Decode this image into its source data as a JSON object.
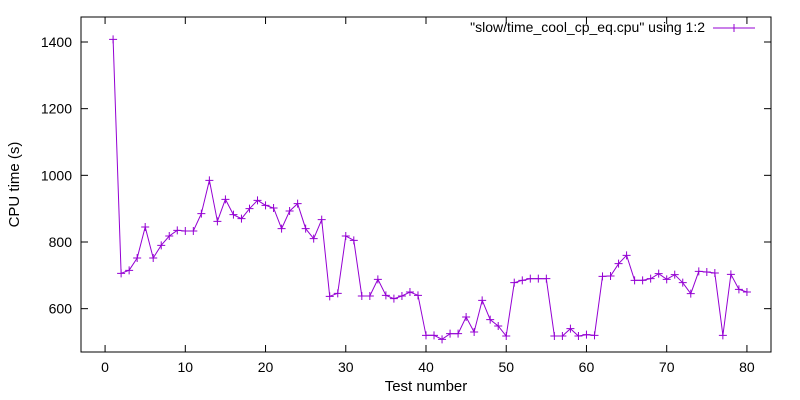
{
  "chart_data": {
    "type": "line",
    "xlabel": "Test number",
    "ylabel": "CPU time (s)",
    "xlim": [
      -3,
      83
    ],
    "ylim": [
      470,
      1475
    ],
    "xticks": [
      0,
      10,
      20,
      30,
      40,
      50,
      60,
      70,
      80
    ],
    "yticks": [
      600,
      800,
      1000,
      1200,
      1400
    ],
    "grid": false,
    "legend_position": "top-right",
    "series": [
      {
        "name": "\"slow/time_cool_cp_eq.cpu\" using 1:2",
        "color": "#9400d3",
        "marker": "plus",
        "x": [
          1,
          2,
          3,
          4,
          5,
          6,
          7,
          8,
          9,
          10,
          11,
          12,
          13,
          14,
          15,
          16,
          17,
          18,
          19,
          20,
          21,
          22,
          23,
          24,
          25,
          26,
          27,
          28,
          29,
          30,
          31,
          32,
          33,
          34,
          35,
          36,
          37,
          38,
          39,
          40,
          41,
          42,
          43,
          44,
          45,
          46,
          47,
          48,
          49,
          50,
          51,
          52,
          53,
          54,
          55,
          56,
          57,
          58,
          59,
          60,
          61,
          62,
          63,
          64,
          65,
          66,
          67,
          68,
          69,
          70,
          71,
          72,
          73,
          74,
          75,
          76,
          77,
          78,
          79,
          80
        ],
        "y": [
          1408,
          706,
          715,
          752,
          845,
          752,
          790,
          818,
          835,
          833,
          833,
          885,
          985,
          862,
          928,
          882,
          870,
          900,
          925,
          910,
          902,
          840,
          893,
          915,
          840,
          810,
          867,
          637,
          646,
          818,
          805,
          638,
          638,
          688,
          640,
          630,
          638,
          650,
          640,
          520,
          520,
          508,
          525,
          525,
          575,
          530,
          625,
          567,
          548,
          518,
          678,
          685,
          690,
          690,
          690,
          518,
          518,
          540,
          518,
          522,
          520,
          697,
          698,
          735,
          760,
          685,
          685,
          690,
          705,
          688,
          702,
          678,
          645,
          712,
          710,
          707,
          520,
          703,
          658,
          650
        ]
      }
    ]
  }
}
